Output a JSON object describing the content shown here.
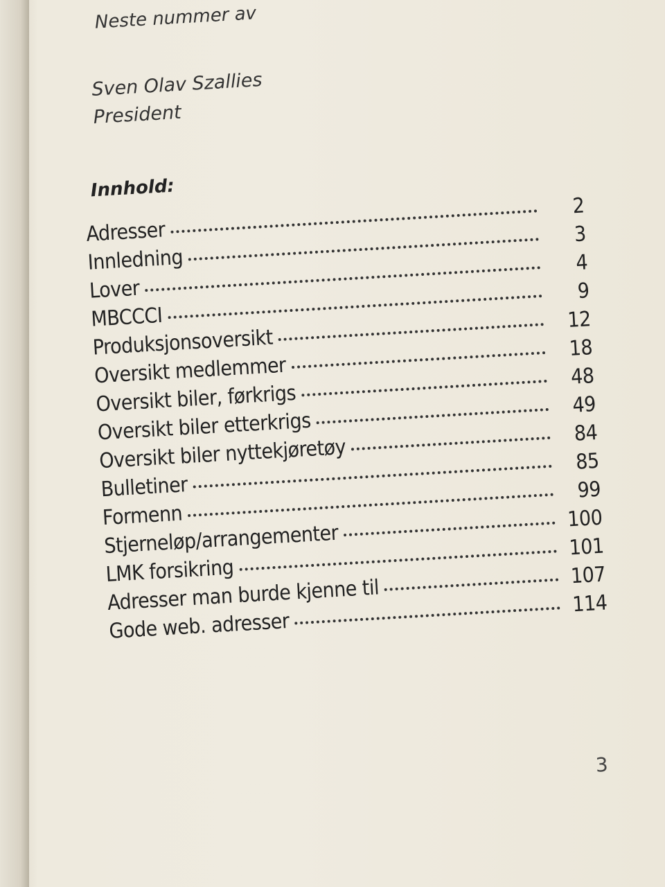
{
  "header": {
    "intro": "Neste nummer av",
    "signature": "Sven Olav Szallies",
    "role": "President"
  },
  "toc": {
    "heading": "Innhold:",
    "entries": [
      {
        "title": "Adresser",
        "page": "2"
      },
      {
        "title": "Innledning",
        "page": "3"
      },
      {
        "title": "Lover",
        "page": "4"
      },
      {
        "title": "MBCCCI",
        "page": "9"
      },
      {
        "title": "Produksjonsoversikt",
        "page": "12"
      },
      {
        "title": "Oversikt medlemmer",
        "page": "18"
      },
      {
        "title": "Oversikt biler, førkrigs",
        "page": "48"
      },
      {
        "title": "Oversikt biler etterkrigs",
        "page": "49"
      },
      {
        "title": "Oversikt biler nyttekjøretøy",
        "page": "84"
      },
      {
        "title": "Bulletiner",
        "page": "85"
      },
      {
        "title": "Formenn",
        "page": "99"
      },
      {
        "title": "Stjerneløp/arrangementer",
        "page": "100"
      },
      {
        "title": "LMK forsikring",
        "page": "101"
      },
      {
        "title": "Adresser man burde kjenne til",
        "page": "107"
      },
      {
        "title": "Gode web. adresser",
        "page": "114"
      }
    ]
  },
  "footer": {
    "page_number": "3"
  }
}
